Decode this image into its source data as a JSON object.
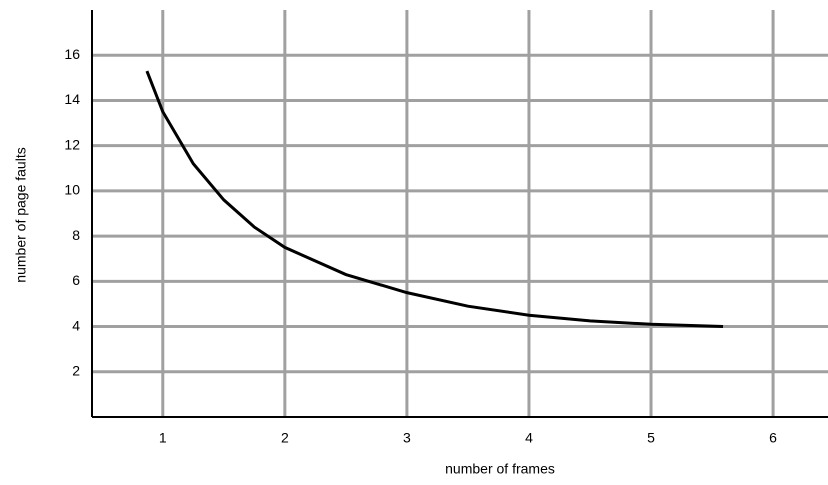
{
  "chart_data": {
    "type": "line",
    "x_label": "number of frames",
    "y_label": "number of page faults",
    "x": [
      0.87,
      1,
      1.25,
      1.5,
      1.75,
      2,
      2.5,
      3,
      3.5,
      4,
      4.5,
      5,
      5.59
    ],
    "series": [
      {
        "name": "page faults",
        "color": "#000000",
        "values": [
          15.3,
          13.5,
          11.2,
          9.6,
          8.4,
          7.5,
          6.3,
          5.5,
          4.9,
          4.5,
          4.25,
          4.1,
          4.0
        ]
      }
    ],
    "xlim": [
      0.42,
      6.45
    ],
    "ylim": [
      0,
      18
    ],
    "xticks": [
      1,
      2,
      3,
      4,
      5,
      6
    ],
    "yticks": [
      2,
      4,
      6,
      8,
      10,
      12,
      14,
      16
    ],
    "grid": true
  }
}
